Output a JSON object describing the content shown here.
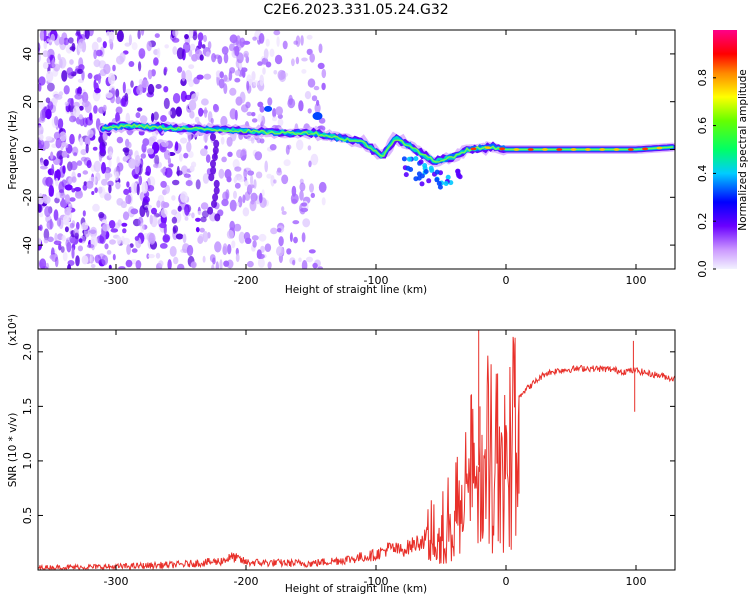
{
  "title": "C2E6.2023.331.05.24.G32",
  "chart_data": [
    {
      "type": "heatmap",
      "xlabel": "Height of straight line (km)",
      "ylabel": "Frequency (Hz)",
      "xlim": [
        -360,
        130
      ],
      "ylim": [
        -50,
        50
      ],
      "xticks": [
        -300,
        -200,
        -100,
        0,
        100
      ],
      "yticks": [
        -40,
        -20,
        0,
        20,
        40
      ],
      "colorbar": {
        "label": "Normalized spectral amplitude",
        "range": [
          0.0,
          1.0
        ],
        "ticks": [
          0.0,
          0.2,
          0.4,
          0.6,
          0.8
        ]
      },
      "signal_track": [
        {
          "x": -310,
          "y": 9
        },
        {
          "x": -290,
          "y": 10
        },
        {
          "x": -260,
          "y": 9
        },
        {
          "x": -210,
          "y": 8
        },
        {
          "x": -180,
          "y": 7
        },
        {
          "x": -150,
          "y": 7
        },
        {
          "x": -130,
          "y": 5
        },
        {
          "x": -110,
          "y": 3
        },
        {
          "x": -95,
          "y": -3
        },
        {
          "x": -85,
          "y": 5
        },
        {
          "x": -70,
          "y": 0
        },
        {
          "x": -55,
          "y": -5
        },
        {
          "x": -40,
          "y": -3
        },
        {
          "x": -30,
          "y": 0
        },
        {
          "x": -10,
          "y": 1
        },
        {
          "x": 0,
          "y": 0
        },
        {
          "x": 40,
          "y": 0
        },
        {
          "x": 80,
          "y": 0
        },
        {
          "x": 100,
          "y": 0
        },
        {
          "x": 128,
          "y": 1
        }
      ]
    },
    {
      "type": "line",
      "xlabel": "Height of straight line (km)",
      "ylabel": "SNR (10 * v/v)",
      "scale_label": "(x10⁴)",
      "xlim": [
        -360,
        130
      ],
      "ylim": [
        0,
        2.2
      ],
      "xticks": [
        -300,
        -200,
        -100,
        0,
        100
      ],
      "yticks": [
        0.5,
        1.0,
        1.5,
        2.0
      ],
      "series": [
        {
          "color": "#e8302a",
          "x": [
            -360,
            -300,
            -250,
            -220,
            -210,
            -200,
            -150,
            -120,
            -100,
            -90,
            -80,
            -60,
            -50,
            -40,
            -35,
            -30,
            -25,
            -20,
            -15,
            -10,
            -5,
            0,
            10,
            20,
            30,
            40,
            60,
            80,
            90,
            100,
            110,
            120,
            130
          ],
          "y": [
            0.02,
            0.03,
            0.05,
            0.08,
            0.12,
            0.07,
            0.06,
            0.1,
            0.14,
            0.2,
            0.18,
            0.3,
            0.45,
            0.55,
            0.7,
            1.1,
            1.2,
            0.9,
            1.3,
            1.2,
            1.4,
            1.45,
            1.6,
            1.7,
            1.8,
            1.83,
            1.85,
            1.84,
            1.82,
            1.83,
            1.8,
            1.78,
            1.75
          ]
        }
      ]
    }
  ]
}
